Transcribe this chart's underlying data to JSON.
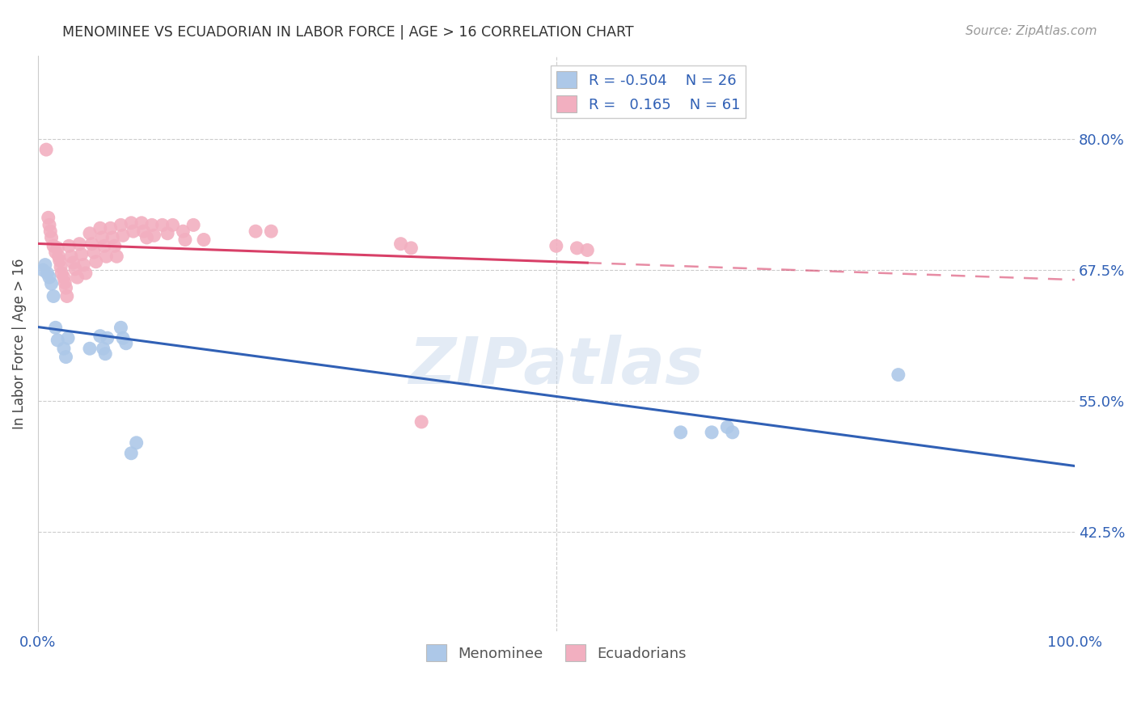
{
  "title": "MENOMINEE VS ECUADORIAN IN LABOR FORCE | AGE > 16 CORRELATION CHART",
  "source": "Source: ZipAtlas.com",
  "ylabel": "In Labor Force | Age > 16",
  "ytick_labels": [
    "42.5%",
    "55.0%",
    "67.5%",
    "80.0%"
  ],
  "ytick_values": [
    0.425,
    0.55,
    0.675,
    0.8
  ],
  "xlim": [
    0.0,
    1.0
  ],
  "ylim": [
    0.33,
    0.88
  ],
  "legend_r_blue": "-0.504",
  "legend_n_blue": "26",
  "legend_r_pink": "0.165",
  "legend_n_pink": "61",
  "blue_scatter_color": "#adc8e8",
  "pink_scatter_color": "#f2afc0",
  "blue_line_color": "#3060b5",
  "pink_line_color": "#d84068",
  "watermark": "ZIPatlas",
  "menominee_x": [
    0.005,
    0.007,
    0.009,
    0.011,
    0.013,
    0.015,
    0.017,
    0.019,
    0.025,
    0.027,
    0.029,
    0.05,
    0.06,
    0.063,
    0.065,
    0.067,
    0.08,
    0.082,
    0.085,
    0.09,
    0.095,
    0.62,
    0.65,
    0.665,
    0.67,
    0.83
  ],
  "menominee_y": [
    0.675,
    0.68,
    0.672,
    0.668,
    0.662,
    0.65,
    0.62,
    0.608,
    0.6,
    0.592,
    0.61,
    0.6,
    0.612,
    0.6,
    0.595,
    0.61,
    0.62,
    0.61,
    0.605,
    0.5,
    0.51,
    0.52,
    0.52,
    0.525,
    0.52,
    0.575
  ],
  "ecuadorian_x": [
    0.008,
    0.01,
    0.011,
    0.012,
    0.013,
    0.015,
    0.017,
    0.019,
    0.02,
    0.021,
    0.022,
    0.023,
    0.025,
    0.026,
    0.027,
    0.028,
    0.03,
    0.032,
    0.034,
    0.036,
    0.038,
    0.04,
    0.042,
    0.044,
    0.046,
    0.05,
    0.052,
    0.054,
    0.056,
    0.06,
    0.062,
    0.064,
    0.066,
    0.07,
    0.072,
    0.074,
    0.076,
    0.08,
    0.082,
    0.09,
    0.092,
    0.1,
    0.102,
    0.105,
    0.11,
    0.112,
    0.12,
    0.125,
    0.13,
    0.14,
    0.142,
    0.15,
    0.16,
    0.21,
    0.225,
    0.35,
    0.36,
    0.37,
    0.5,
    0.52,
    0.53
  ],
  "ecuadorian_y": [
    0.79,
    0.725,
    0.718,
    0.712,
    0.706,
    0.698,
    0.692,
    0.696,
    0.688,
    0.684,
    0.678,
    0.672,
    0.668,
    0.663,
    0.658,
    0.65,
    0.698,
    0.688,
    0.682,
    0.676,
    0.668,
    0.7,
    0.69,
    0.68,
    0.672,
    0.71,
    0.7,
    0.692,
    0.683,
    0.715,
    0.706,
    0.698,
    0.688,
    0.715,
    0.706,
    0.698,
    0.688,
    0.718,
    0.708,
    0.72,
    0.712,
    0.72,
    0.712,
    0.706,
    0.718,
    0.708,
    0.718,
    0.71,
    0.718,
    0.712,
    0.704,
    0.718,
    0.704,
    0.712,
    0.712,
    0.7,
    0.696,
    0.53,
    0.698,
    0.696,
    0.694
  ]
}
